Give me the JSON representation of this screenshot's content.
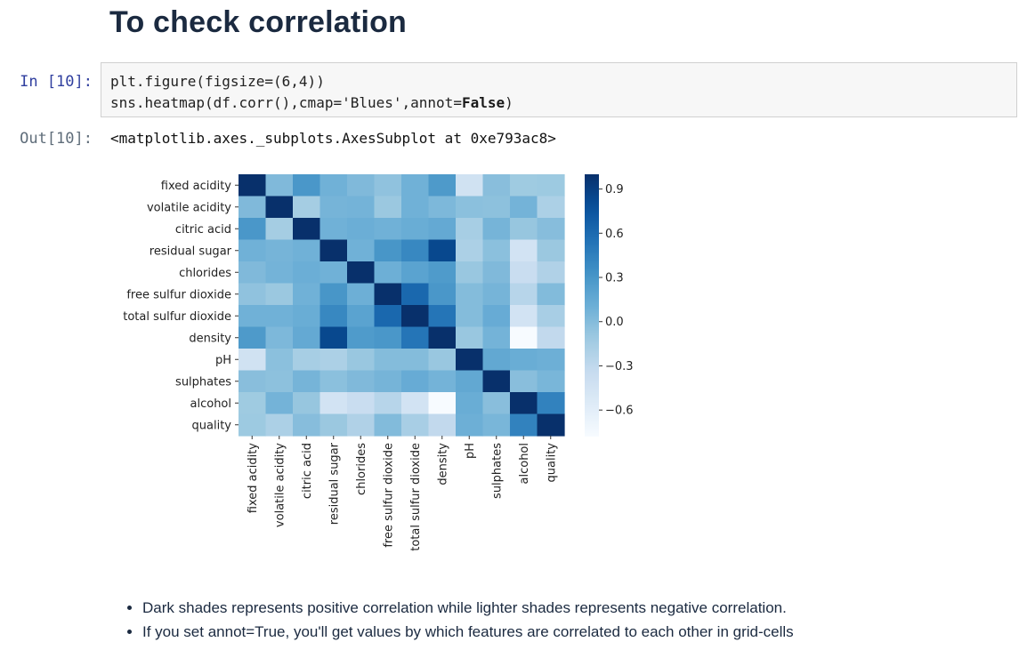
{
  "heading": "To check correlation",
  "cell": {
    "in_prompt": "In [10]:",
    "out_prompt": "Out[10]:",
    "code_line1": "plt.figure(figsize=(6,4))",
    "code_line2_pre": "sns.heatmap(df.corr(),cmap='Blues',annot=",
    "code_line2_kw": "False",
    "code_line2_post": ")",
    "output_text": "<matplotlib.axes._subplots.AxesSubplot at 0xe793ac8>"
  },
  "chart_data": {
    "type": "heatmap",
    "title": "",
    "colormap": "Blues",
    "labels": [
      "fixed acidity",
      "volatile acidity",
      "citric acid",
      "residual sugar",
      "chlorides",
      "free sulfur dioxide",
      "total sulfur dioxide",
      "density",
      "pH",
      "sulphates",
      "alcohol",
      "quality"
    ],
    "matrix": [
      [
        1.0,
        0.02,
        0.29,
        0.09,
        0.02,
        -0.05,
        0.09,
        0.27,
        -0.43,
        -0.02,
        -0.12,
        -0.11
      ],
      [
        0.02,
        1.0,
        -0.15,
        0.06,
        0.07,
        -0.1,
        0.09,
        0.03,
        -0.03,
        -0.04,
        0.07,
        -0.19
      ],
      [
        0.29,
        -0.15,
        1.0,
        0.09,
        0.11,
        0.09,
        0.12,
        0.15,
        -0.16,
        0.06,
        -0.08,
        -0.01
      ],
      [
        0.09,
        0.06,
        0.09,
        1.0,
        0.09,
        0.3,
        0.4,
        0.84,
        -0.19,
        -0.03,
        -0.45,
        -0.1
      ],
      [
        0.02,
        0.07,
        0.11,
        0.09,
        1.0,
        0.1,
        0.2,
        0.26,
        -0.09,
        0.02,
        -0.36,
        -0.21
      ],
      [
        -0.05,
        -0.1,
        0.09,
        0.3,
        0.1,
        1.0,
        0.62,
        0.29,
        0.0,
        0.06,
        -0.25,
        0.01
      ],
      [
        0.09,
        0.09,
        0.12,
        0.4,
        0.2,
        0.62,
        1.0,
        0.53,
        0.0,
        0.13,
        -0.45,
        -0.17
      ],
      [
        0.27,
        0.03,
        0.15,
        0.84,
        0.26,
        0.29,
        0.53,
        1.0,
        -0.09,
        0.07,
        -0.78,
        -0.31
      ],
      [
        -0.43,
        -0.03,
        -0.16,
        -0.19,
        -0.09,
        0.0,
        0.0,
        -0.09,
        1.0,
        0.16,
        0.12,
        0.1
      ],
      [
        -0.02,
        -0.04,
        0.06,
        -0.03,
        0.02,
        0.06,
        0.13,
        0.07,
        0.16,
        1.0,
        -0.02,
        0.05
      ],
      [
        -0.12,
        0.07,
        -0.08,
        -0.45,
        -0.36,
        -0.25,
        -0.45,
        -0.78,
        0.12,
        -0.02,
        1.0,
        0.44
      ],
      [
        -0.11,
        -0.19,
        -0.01,
        -0.1,
        -0.21,
        0.01,
        -0.17,
        -0.31,
        0.1,
        0.05,
        0.44,
        1.0
      ]
    ],
    "vmin": -0.78,
    "vmax": 1.0,
    "colorbar_ticks": [
      "0.9",
      "0.6",
      "0.3",
      "0.0",
      "−0.3",
      "−0.6"
    ],
    "colorbar_tick_values": [
      0.9,
      0.6,
      0.3,
      0.0,
      -0.3,
      -0.6
    ]
  },
  "notes": [
    "Dark shades represents positive correlation while lighter shades represents negative correlation.",
    "If you set annot=True, you'll get values by which features are correlated to each other in grid-cells"
  ]
}
